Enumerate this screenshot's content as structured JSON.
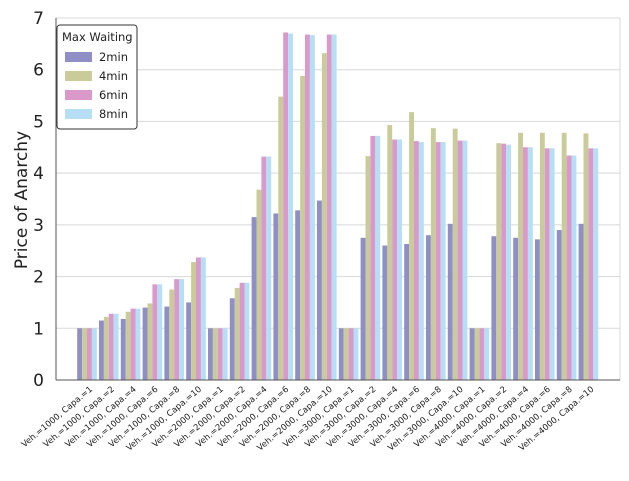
{
  "chart_data": {
    "type": "bar",
    "title": "",
    "xlabel": "",
    "ylabel": "Price of Anarchy",
    "ylim": [
      0,
      7
    ],
    "yticks": [
      0,
      1,
      2,
      3,
      4,
      5,
      6,
      7
    ],
    "grid": true,
    "legend": {
      "title": "Max Waiting",
      "placement": "top-left"
    },
    "categories": [
      "Veh.=1000, Capa.=1",
      "Veh.=1000, Capa.=2",
      "Veh.=1000, Capa.=4",
      "Veh.=1000, Capa.=6",
      "Veh.=1000, Capa.=8",
      "Veh.=1000, Capa.=10",
      "Veh.=2000, Capa.=1",
      "Veh.=2000, Capa.=2",
      "Veh.=2000, Capa.=4",
      "Veh.=2000, Capa.=6",
      "Veh.=2000, Capa.=8",
      "Veh.=2000, Capa.=10",
      "Veh.=3000, Capa.=1",
      "Veh.=3000, Capa.=2",
      "Veh.=3000, Capa.=4",
      "Veh.=3000, Capa.=6",
      "Veh.=3000, Capa.=8",
      "Veh.=3000, Capa.=10",
      "Veh.=4000, Capa.=1",
      "Veh.=4000, Capa.=2",
      "Veh.=4000, Capa.=4",
      "Veh.=4000, Capa.=6",
      "Veh.=4000, Capa.=8",
      "Veh.=4000, Capa.=10"
    ],
    "series": [
      {
        "name": "2min",
        "color": "#8f8fc6",
        "values": [
          1.0,
          1.15,
          1.18,
          1.4,
          1.42,
          1.5,
          1.0,
          1.58,
          3.15,
          3.22,
          3.28,
          3.47,
          1.0,
          2.75,
          2.6,
          2.63,
          2.8,
          3.02,
          1.0,
          2.78,
          2.75,
          2.72,
          2.9,
          3.02
        ]
      },
      {
        "name": "4min",
        "color": "#c9cc9a",
        "values": [
          1.0,
          1.22,
          1.32,
          1.48,
          1.75,
          2.28,
          1.0,
          1.78,
          3.68,
          5.48,
          5.88,
          6.32,
          1.0,
          4.33,
          4.93,
          5.18,
          4.87,
          4.86,
          1.0,
          4.58,
          4.78,
          4.78,
          4.78,
          4.77
        ]
      },
      {
        "name": "6min",
        "color": "#d99acb",
        "values": [
          1.0,
          1.28,
          1.38,
          1.85,
          1.95,
          2.37,
          1.0,
          1.88,
          4.32,
          6.72,
          6.68,
          6.68,
          1.0,
          4.72,
          4.65,
          4.62,
          4.6,
          4.63,
          1.0,
          4.57,
          4.5,
          4.48,
          4.34,
          4.48
        ]
      },
      {
        "name": "8min",
        "color": "#b6def4",
        "values": [
          1.0,
          1.28,
          1.38,
          1.85,
          1.95,
          2.37,
          1.0,
          1.88,
          4.32,
          6.7,
          6.67,
          6.68,
          1.0,
          4.72,
          4.65,
          4.6,
          4.6,
          4.63,
          1.0,
          4.55,
          4.5,
          4.48,
          4.34,
          4.48
        ]
      }
    ]
  }
}
